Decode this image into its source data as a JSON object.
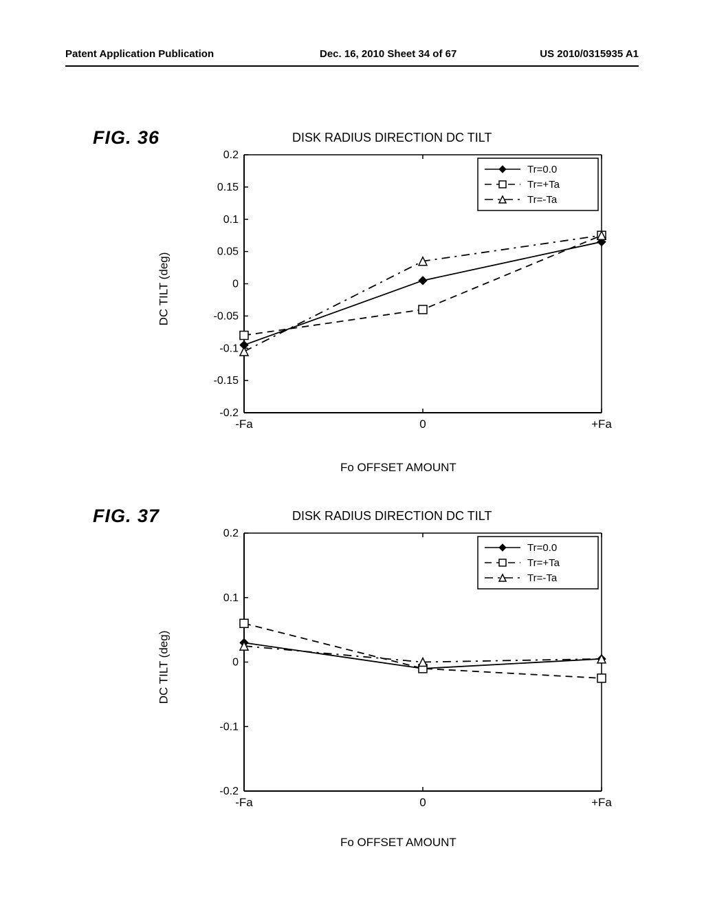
{
  "header": {
    "left": "Patent Application Publication",
    "center": "Dec. 16, 2010  Sheet 34 of 67",
    "right": "US 2010/0315935 A1"
  },
  "fig36": {
    "label": "FIG. 36",
    "title": "DISK RADIUS DIRECTION   DC TILT",
    "ylabel": "DC TILT (deg)",
    "xlabel": "Fo OFFSET AMOUNT",
    "ylim": [
      -0.2,
      0.2
    ],
    "yticks": [
      "0.2",
      "0.15",
      "0.1",
      "0.05",
      "0",
      "-0.05",
      "-0.1",
      "-0.15",
      "-0.2"
    ],
    "xticks": [
      "-Fa",
      "0",
      "+Fa"
    ],
    "background_color": "#ffffff",
    "axis_color": "#000000",
    "legend": [
      {
        "marker": "diamond-filled",
        "dash": "solid",
        "text": "Tr=0.0"
      },
      {
        "marker": "square-open",
        "dash": "dash",
        "text": "Tr=+Ta"
      },
      {
        "marker": "triangle-open",
        "dash": "dashdot",
        "text": "Tr=-Ta"
      }
    ],
    "series": {
      "tr0": {
        "x": [
          -1,
          0,
          1
        ],
        "y": [
          -0.095,
          0.005,
          0.065
        ],
        "marker": "diamond-filled",
        "dash": "solid",
        "color": "#000000"
      },
      "trpos": {
        "x": [
          -1,
          0,
          1
        ],
        "y": [
          -0.08,
          -0.04,
          0.075
        ],
        "marker": "square-open",
        "dash": "dash",
        "color": "#000000"
      },
      "trneg": {
        "x": [
          -1,
          0,
          1
        ],
        "y": [
          -0.105,
          0.035,
          0.075
        ],
        "marker": "triangle-open",
        "dash": "dashdot",
        "color": "#000000"
      }
    }
  },
  "fig37": {
    "label": "FIG. 37",
    "title": "DISK RADIUS DIRECTION   DC TILT",
    "ylabel": "DC TILT (deg)",
    "xlabel": "Fo OFFSET AMOUNT",
    "ylim": [
      -0.2,
      0.2
    ],
    "yticks": [
      "0.2",
      "0.1",
      "0",
      "-0.1",
      "-0.2"
    ],
    "xticks": [
      "-Fa",
      "0",
      "+Fa"
    ],
    "background_color": "#ffffff",
    "axis_color": "#000000",
    "legend": [
      {
        "marker": "diamond-filled",
        "dash": "solid",
        "text": "Tr=0.0"
      },
      {
        "marker": "square-open",
        "dash": "dash",
        "text": "Tr=+Ta"
      },
      {
        "marker": "triangle-open",
        "dash": "dashdot",
        "text": "Tr=-Ta"
      }
    ],
    "series": {
      "tr0": {
        "x": [
          -1,
          0,
          1
        ],
        "y": [
          0.03,
          -0.01,
          0.005
        ],
        "marker": "diamond-filled",
        "dash": "solid",
        "color": "#000000"
      },
      "trpos": {
        "x": [
          -1,
          0,
          1
        ],
        "y": [
          0.06,
          -0.01,
          -0.025
        ],
        "marker": "square-open",
        "dash": "dash",
        "color": "#000000"
      },
      "trneg": {
        "x": [
          -1,
          0,
          1
        ],
        "y": [
          0.025,
          0.0,
          0.005
        ],
        "marker": "triangle-open",
        "dash": "dashdot",
        "color": "#000000"
      }
    }
  }
}
